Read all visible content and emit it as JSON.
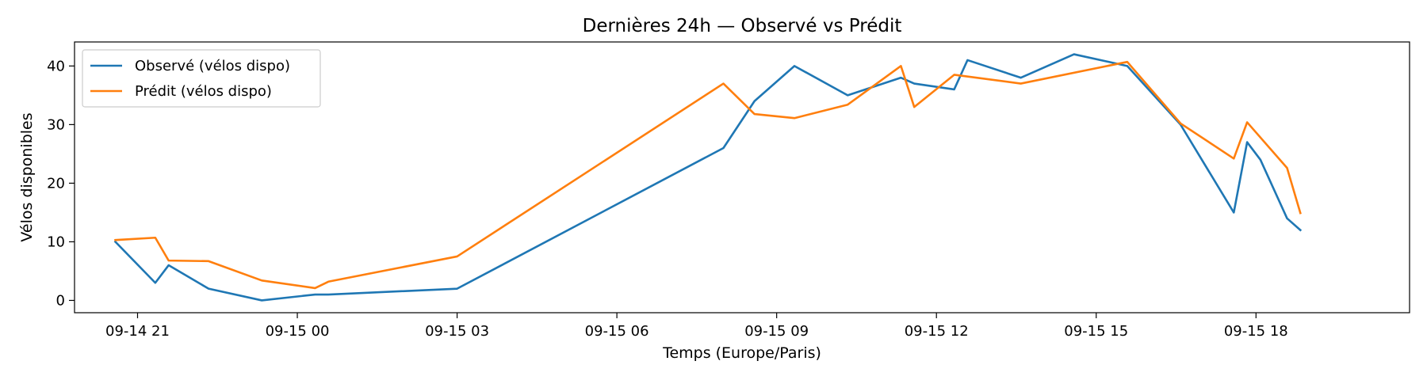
{
  "chart_data": {
    "type": "line",
    "title": "Dernières 24h — Observé vs Prédit",
    "xlabel": "Temps (Europe/Paris)",
    "ylabel": "Vélos disponibles",
    "x_range": [
      "2024-09-14 19:49",
      "2024-09-15 20:53"
    ],
    "ylim": [
      -2.1,
      44.1
    ],
    "x_ticks": [
      {
        "t": "2024-09-14 21:00",
        "label": "09-14 21"
      },
      {
        "t": "2024-09-15 00:00",
        "label": "09-15 00"
      },
      {
        "t": "2024-09-15 03:00",
        "label": "09-15 03"
      },
      {
        "t": "2024-09-15 06:00",
        "label": "09-15 06"
      },
      {
        "t": "2024-09-15 09:00",
        "label": "09-15 09"
      },
      {
        "t": "2024-09-15 12:00",
        "label": "09-15 12"
      },
      {
        "t": "2024-09-15 15:00",
        "label": "09-15 15"
      },
      {
        "t": "2024-09-15 18:00",
        "label": "09-15 18"
      }
    ],
    "y_ticks": [
      0,
      10,
      20,
      30,
      40
    ],
    "grid": false,
    "legend_position": "top-left",
    "series": [
      {
        "name": "Observé (vélos dispo)",
        "color": "#1f77b4",
        "points": [
          [
            "2024-09-14 20:35",
            10
          ],
          [
            "2024-09-14 21:20",
            3
          ],
          [
            "2024-09-14 21:35",
            6
          ],
          [
            "2024-09-14 22:20",
            2
          ],
          [
            "2024-09-14 23:20",
            0
          ],
          [
            "2024-09-15 00:20",
            1
          ],
          [
            "2024-09-15 00:35",
            1
          ],
          [
            "2024-09-15 03:00",
            2
          ],
          [
            "2024-09-15 08:00",
            26
          ],
          [
            "2024-09-15 08:35",
            34
          ],
          [
            "2024-09-15 09:20",
            40
          ],
          [
            "2024-09-15 10:20",
            35
          ],
          [
            "2024-09-15 11:20",
            38
          ],
          [
            "2024-09-15 11:35",
            37
          ],
          [
            "2024-09-15 12:20",
            36
          ],
          [
            "2024-09-15 12:35",
            41
          ],
          [
            "2024-09-15 13:35",
            38
          ],
          [
            "2024-09-15 14:35",
            42
          ],
          [
            "2024-09-15 15:35",
            40
          ],
          [
            "2024-09-15 16:35",
            30
          ],
          [
            "2024-09-15 17:35",
            15
          ],
          [
            "2024-09-15 17:50",
            27
          ],
          [
            "2024-09-15 18:05",
            24
          ],
          [
            "2024-09-15 18:35",
            14
          ],
          [
            "2024-09-15 18:50",
            12
          ]
        ]
      },
      {
        "name": "Prédit (vélos dispo)",
        "color": "#ff7f0e",
        "points": [
          [
            "2024-09-14 20:35",
            10.3
          ],
          [
            "2024-09-14 21:20",
            10.7
          ],
          [
            "2024-09-14 21:35",
            6.8
          ],
          [
            "2024-09-14 22:20",
            6.7
          ],
          [
            "2024-09-14 23:20",
            3.4
          ],
          [
            "2024-09-15 00:20",
            2.1
          ],
          [
            "2024-09-15 00:35",
            3.2
          ],
          [
            "2024-09-15 03:00",
            7.5
          ],
          [
            "2024-09-15 08:00",
            37
          ],
          [
            "2024-09-15 08:35",
            31.8
          ],
          [
            "2024-09-15 09:20",
            31.1
          ],
          [
            "2024-09-15 10:20",
            33.4
          ],
          [
            "2024-09-15 11:20",
            40
          ],
          [
            "2024-09-15 11:35",
            33
          ],
          [
            "2024-09-15 12:20",
            38.5
          ],
          [
            "2024-09-15 13:35",
            37
          ],
          [
            "2024-09-15 15:35",
            40.7
          ],
          [
            "2024-09-15 16:35",
            30.2
          ],
          [
            "2024-09-15 17:35",
            24.2
          ],
          [
            "2024-09-15 17:50",
            30.4
          ],
          [
            "2024-09-15 18:35",
            22.6
          ],
          [
            "2024-09-15 18:50",
            14.9
          ]
        ]
      }
    ]
  }
}
